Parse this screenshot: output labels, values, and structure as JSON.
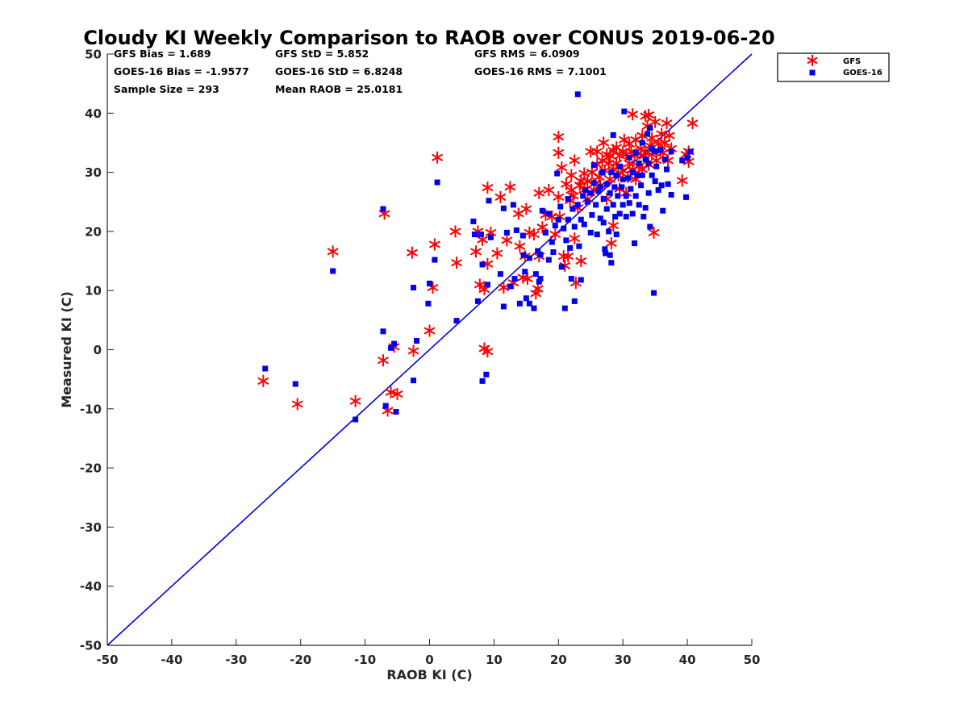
{
  "chart_data": {
    "type": "scatter",
    "title": "Cloudy KI Weekly Comparison to RAOB over CONUS 2019-06-20",
    "xlabel": "RAOB KI (C)",
    "ylabel": "Measured KI (C)",
    "xlim": [
      -50,
      50
    ],
    "ylim": [
      -50,
      50
    ],
    "xticks": [
      -50,
      -40,
      -30,
      -20,
      -10,
      0,
      10,
      20,
      30,
      40,
      50
    ],
    "yticks": [
      -50,
      -40,
      -30,
      -20,
      -10,
      0,
      10,
      20,
      30,
      40,
      50
    ],
    "grid": false,
    "legend_position": "outside top-right",
    "reference_line": {
      "name": "1:1 line",
      "from": [
        -50,
        -50
      ],
      "to": [
        50,
        50
      ],
      "color": "#0000dd"
    },
    "stats": [
      {
        "text": "GFS Bias = 1.689"
      },
      {
        "text": "GFS StD = 5.852"
      },
      {
        "text": "GFS RMS = 6.0909"
      },
      {
        "text": "GOES-16 Bias = -1.9577"
      },
      {
        "text": "GOES-16 StD = 6.8248"
      },
      {
        "text": "GOES-16 RMS = 7.1001"
      },
      {
        "text": "Sample Size = 293"
      },
      {
        "text": "Mean RAOB = 25.0181"
      }
    ],
    "series": [
      {
        "name": "GFS",
        "marker": "asterisk",
        "color": "#ff0000",
        "points": [
          [
            -25.8,
            -5.3
          ],
          [
            -20.5,
            -9.2
          ],
          [
            -15,
            16.6
          ],
          [
            -11.5,
            -8.7
          ],
          [
            -7.2,
            -1.8
          ],
          [
            -7,
            23
          ],
          [
            -6.5,
            -10.3
          ],
          [
            -6,
            -7.2
          ],
          [
            -5.5,
            0.5
          ],
          [
            -5,
            -7.5
          ],
          [
            -2.7,
            16.4
          ],
          [
            -2.5,
            -0.2
          ],
          [
            0,
            3.2
          ],
          [
            0.5,
            10.5
          ],
          [
            0.8,
            17.8
          ],
          [
            1.2,
            32.5
          ],
          [
            4,
            20
          ],
          [
            4.2,
            14.7
          ],
          [
            7.2,
            16.6
          ],
          [
            7.5,
            20
          ],
          [
            7.8,
            11
          ],
          [
            8.2,
            18.6
          ],
          [
            8.5,
            10.2
          ],
          [
            8.5,
            0.2
          ],
          [
            9,
            14.5
          ],
          [
            9,
            27.4
          ],
          [
            9,
            -0.3
          ],
          [
            9.5,
            19.8
          ],
          [
            10.5,
            16.3
          ],
          [
            11,
            25.8
          ],
          [
            11.5,
            10.5
          ],
          [
            12,
            18.5
          ],
          [
            12.5,
            27.5
          ],
          [
            13,
            11.3
          ],
          [
            13.8,
            23
          ],
          [
            14,
            17.5
          ],
          [
            14.5,
            12.2
          ],
          [
            14.8,
            15.8
          ],
          [
            15,
            23.8
          ],
          [
            15.5,
            19.8
          ],
          [
            15.2,
            12
          ],
          [
            16.2,
            19.5
          ],
          [
            16.5,
            9.5
          ],
          [
            16.8,
            10.3
          ],
          [
            17,
            15.8
          ],
          [
            17,
            26.5
          ],
          [
            17.5,
            20.7
          ],
          [
            18,
            22.8
          ],
          [
            18.5,
            27
          ],
          [
            19,
            22.5
          ],
          [
            19.5,
            19.5
          ],
          [
            20,
            36
          ],
          [
            20,
            33.3
          ],
          [
            20,
            25.8
          ],
          [
            20.5,
            30.8
          ],
          [
            20.2,
            22.5
          ],
          [
            20.8,
            15.8
          ],
          [
            21,
            14.2
          ],
          [
            21.2,
            28
          ],
          [
            21.5,
            15.8
          ],
          [
            21.8,
            25.2
          ],
          [
            22,
            27
          ],
          [
            22,
            29.5
          ],
          [
            22.3,
            26
          ],
          [
            22.5,
            32
          ],
          [
            22.5,
            18.8
          ],
          [
            22.7,
            11.3
          ],
          [
            23,
            24
          ],
          [
            23.3,
            27.8
          ],
          [
            23.5,
            15
          ],
          [
            23.5,
            28.5
          ],
          [
            24,
            27
          ],
          [
            24,
            29.8
          ],
          [
            24.5,
            28.5
          ],
          [
            24.5,
            25.5
          ],
          [
            25,
            33.5
          ],
          [
            25.2,
            30
          ],
          [
            25.5,
            27
          ],
          [
            25.5,
            28
          ],
          [
            26,
            31.3
          ],
          [
            26,
            33.5
          ],
          [
            26.3,
            29.2
          ],
          [
            26.5,
            27.8
          ],
          [
            26.8,
            32
          ],
          [
            27,
            35
          ],
          [
            27.2,
            30.3
          ],
          [
            27.5,
            33
          ],
          [
            27.8,
            31.5
          ],
          [
            27.5,
            25.5
          ],
          [
            28,
            32.8
          ],
          [
            28,
            28.8
          ],
          [
            28.2,
            18
          ],
          [
            28.5,
            33.7
          ],
          [
            28.5,
            30.5
          ],
          [
            28.5,
            21
          ],
          [
            29,
            31.5
          ],
          [
            29,
            34.2
          ],
          [
            29.3,
            29.5
          ],
          [
            29.5,
            32.8
          ],
          [
            29.5,
            27.2
          ],
          [
            30,
            33.5
          ],
          [
            30,
            30.3
          ],
          [
            30.2,
            35.5
          ],
          [
            30.5,
            33
          ],
          [
            30.5,
            26.5
          ],
          [
            30.8,
            29.2
          ],
          [
            31,
            34.8
          ],
          [
            31,
            31.5
          ],
          [
            31.3,
            33.5
          ],
          [
            31.5,
            39.8
          ],
          [
            31.5,
            30.5
          ],
          [
            31.8,
            32.8
          ],
          [
            32,
            35.5
          ],
          [
            32,
            28.8
          ],
          [
            32.3,
            33.2
          ],
          [
            32.5,
            31
          ],
          [
            32.8,
            34
          ],
          [
            33,
            36.2
          ],
          [
            33,
            30.5
          ],
          [
            33.3,
            32.8
          ],
          [
            33.5,
            39.5
          ],
          [
            33.5,
            33.3
          ],
          [
            33.8,
            37.8
          ],
          [
            34,
            39.7
          ],
          [
            34,
            31.3
          ],
          [
            34.2,
            34.5
          ],
          [
            34.5,
            35.8
          ],
          [
            34.5,
            33
          ],
          [
            34.8,
            19.8
          ],
          [
            35,
            38.5
          ],
          [
            35.2,
            32
          ],
          [
            35.5,
            34.8
          ],
          [
            35.8,
            33.5
          ],
          [
            36,
            36.5
          ],
          [
            36.2,
            33.3
          ],
          [
            36.5,
            35
          ],
          [
            36.8,
            38.3
          ],
          [
            37,
            32
          ],
          [
            37.2,
            36.2
          ],
          [
            37.5,
            34
          ],
          [
            39.2,
            28.6
          ],
          [
            39.8,
            33
          ],
          [
            40.2,
            31.8
          ],
          [
            40.2,
            33.5
          ],
          [
            40.8,
            38.3
          ]
        ]
      },
      {
        "name": "GOES-16",
        "marker": "square",
        "color": "#0000ee",
        "points": [
          [
            -25.5,
            -3.2
          ],
          [
            -20.8,
            -5.8
          ],
          [
            -15,
            13.3
          ],
          [
            -11.5,
            -11.8
          ],
          [
            -7.2,
            23.8
          ],
          [
            -7.2,
            3.1
          ],
          [
            -6.8,
            -9.5
          ],
          [
            -6,
            0.3
          ],
          [
            -5.5,
            1
          ],
          [
            -5.2,
            -10.5
          ],
          [
            -2.5,
            10.5
          ],
          [
            -2.5,
            -5.2
          ],
          [
            -2,
            1.5
          ],
          [
            -0.2,
            7.8
          ],
          [
            0,
            11.2
          ],
          [
            0.8,
            15.2
          ],
          [
            1.2,
            28.3
          ],
          [
            4.2,
            4.9
          ],
          [
            6.8,
            21.7
          ],
          [
            7,
            19.5
          ],
          [
            7.5,
            8.2
          ],
          [
            8,
            19.5
          ],
          [
            8.2,
            14.4
          ],
          [
            8.2,
            -5.3
          ],
          [
            8.8,
            -4.2
          ],
          [
            9,
            11
          ],
          [
            9.2,
            25.2
          ],
          [
            9.5,
            19
          ],
          [
            11,
            12.8
          ],
          [
            11.5,
            7.3
          ],
          [
            11.5,
            23.9
          ],
          [
            12,
            19.8
          ],
          [
            12.5,
            10.7
          ],
          [
            13,
            24.5
          ],
          [
            13.2,
            12
          ],
          [
            13.5,
            20.2
          ],
          [
            14,
            7.8
          ],
          [
            14.5,
            19.3
          ],
          [
            14.6,
            16
          ],
          [
            14.8,
            13.2
          ],
          [
            15,
            8.7
          ],
          [
            15.5,
            7.8
          ],
          [
            15.5,
            15.5
          ],
          [
            16.2,
            7
          ],
          [
            16.5,
            12.8
          ],
          [
            16.8,
            16.7
          ],
          [
            17,
            11.5
          ],
          [
            17.2,
            12
          ],
          [
            17.2,
            16.1
          ],
          [
            17.5,
            23.5
          ],
          [
            18,
            19.8
          ],
          [
            18.5,
            15.2
          ],
          [
            18.5,
            23
          ],
          [
            19,
            18.2
          ],
          [
            19.2,
            16.5
          ],
          [
            19.5,
            21
          ],
          [
            19.8,
            29.8
          ],
          [
            20,
            22
          ],
          [
            20.3,
            24.2
          ],
          [
            20.5,
            14
          ],
          [
            20.8,
            20.5
          ],
          [
            21,
            7
          ],
          [
            21.2,
            18.5
          ],
          [
            21.5,
            22
          ],
          [
            21.5,
            25.5
          ],
          [
            21.8,
            17.2
          ],
          [
            22,
            12
          ],
          [
            22.2,
            23.8
          ],
          [
            22.5,
            8.2
          ],
          [
            22.5,
            20.8
          ],
          [
            23,
            43.2
          ],
          [
            23,
            24.5
          ],
          [
            23.2,
            17.5
          ],
          [
            23.5,
            11.8
          ],
          [
            23.5,
            22
          ],
          [
            23.8,
            26
          ],
          [
            24,
            21.2
          ],
          [
            24.2,
            27
          ],
          [
            24.5,
            25
          ],
          [
            25,
            19.8
          ],
          [
            25,
            26.5
          ],
          [
            25.2,
            22.8
          ],
          [
            25.5,
            28.2
          ],
          [
            25.5,
            31.2
          ],
          [
            25.8,
            24.5
          ],
          [
            26,
            19.5
          ],
          [
            26.2,
            26.8
          ],
          [
            26.5,
            22.2
          ],
          [
            26.5,
            27.5
          ],
          [
            26.8,
            30
          ],
          [
            27,
            21.5
          ],
          [
            27,
            25.5
          ],
          [
            27.2,
            17
          ],
          [
            27.3,
            16.3
          ],
          [
            27.5,
            28
          ],
          [
            27.5,
            23.8
          ],
          [
            27.8,
            20
          ],
          [
            28,
            16
          ],
          [
            28,
            26.5
          ],
          [
            28.2,
            30
          ],
          [
            28.2,
            14.7
          ],
          [
            28.5,
            36.3
          ],
          [
            28.5,
            24.5
          ],
          [
            28.7,
            27.5
          ],
          [
            28.8,
            22.5
          ],
          [
            29,
            29.5
          ],
          [
            29,
            19.5
          ],
          [
            29.2,
            26
          ],
          [
            29.5,
            23
          ],
          [
            29.5,
            31
          ],
          [
            29.8,
            27.5
          ],
          [
            30,
            24.5
          ],
          [
            30,
            28.8
          ],
          [
            30.2,
            40.3
          ],
          [
            30.5,
            22.5
          ],
          [
            30.5,
            26
          ],
          [
            30.8,
            29
          ],
          [
            31,
            32.5
          ],
          [
            31,
            24.8
          ],
          [
            31.2,
            27.2
          ],
          [
            31.5,
            23
          ],
          [
            31.5,
            30
          ],
          [
            31.8,
            18
          ],
          [
            32,
            33.3
          ],
          [
            32,
            26
          ],
          [
            32.2,
            29.5
          ],
          [
            32.5,
            24.5
          ],
          [
            32.5,
            31.5
          ],
          [
            32.8,
            27.8
          ],
          [
            33,
            35
          ],
          [
            33,
            29.5
          ],
          [
            33.2,
            22.5
          ],
          [
            33.5,
            32.2
          ],
          [
            33.5,
            24
          ],
          [
            33.8,
            36.5
          ],
          [
            34,
            31.5
          ],
          [
            34,
            26.5
          ],
          [
            34.2,
            37.5
          ],
          [
            34.2,
            20.8
          ],
          [
            34.5,
            29.5
          ],
          [
            34.5,
            34
          ],
          [
            34.8,
            9.6
          ],
          [
            35,
            33.5
          ],
          [
            35,
            28.5
          ],
          [
            35.2,
            31
          ],
          [
            35.5,
            27
          ],
          [
            35.8,
            33.8
          ],
          [
            36,
            27.8
          ],
          [
            36.2,
            23.5
          ],
          [
            36.5,
            32.2
          ],
          [
            36.8,
            30.5
          ],
          [
            37,
            28
          ],
          [
            37.5,
            26.2
          ],
          [
            37.5,
            33.5
          ],
          [
            39.2,
            32
          ],
          [
            39.8,
            25.8
          ],
          [
            40,
            32.5
          ],
          [
            40.5,
            33.5
          ]
        ]
      }
    ]
  }
}
